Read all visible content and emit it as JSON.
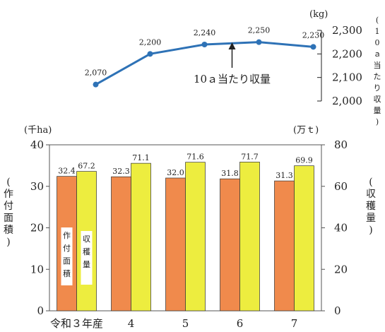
{
  "chart_data": [
    {
      "type": "line",
      "name": "yield-per-10a",
      "categories": [
        "令和３年産",
        "4",
        "5",
        "6",
        "7"
      ],
      "values": [
        2070,
        2200,
        2240,
        2250,
        2230
      ],
      "data_labels": [
        "2,070",
        "2,200",
        "2,240",
        "2,250",
        "2,230"
      ],
      "series_label": "10ａ当たり収量",
      "unit": "(kg)",
      "ylabel": "(10ａ当たり収量)",
      "ylim": [
        2000,
        2300
      ],
      "yticks": [
        2000,
        2100,
        2200,
        2300
      ],
      "ytick_labels": [
        "2,000",
        "2,100",
        "2,200",
        "2,300"
      ],
      "axis_side": "right",
      "color": "#2e72b6"
    },
    {
      "type": "bar",
      "name": "area-and-harvest",
      "categories": [
        "令和３年産",
        "4",
        "5",
        "6",
        "7"
      ],
      "series": [
        {
          "name": "作付面積",
          "values": [
            32.4,
            32.3,
            32.0,
            31.8,
            31.3
          ],
          "data_labels": [
            "32.4",
            "32.3",
            "32.0",
            "31.8",
            "31.3"
          ],
          "axis": "left",
          "color": "#f08a4c"
        },
        {
          "name": "収穫量",
          "values": [
            67.2,
            71.1,
            71.6,
            71.7,
            69.9
          ],
          "data_labels": [
            "67.2",
            "71.1",
            "71.6",
            "71.7",
            "69.9"
          ],
          "axis": "right",
          "color": "#eded3f"
        }
      ],
      "left_axis": {
        "unit": "(千ha)",
        "label": "(作付面積)",
        "ylim": [
          0,
          40
        ],
        "ticks": [
          0,
          10,
          20,
          30,
          40
        ],
        "tick_labels": [
          "0",
          "10",
          "20",
          "30",
          "40"
        ]
      },
      "right_axis": {
        "unit": "(万ｔ)",
        "label": "(収穫量)",
        "ylim": [
          0,
          80
        ],
        "ticks": [
          0,
          20,
          40,
          60,
          80
        ],
        "tick_labels": [
          "0",
          "20",
          "40",
          "60",
          "80"
        ]
      },
      "legend_placement": "inside-first-bars"
    }
  ]
}
